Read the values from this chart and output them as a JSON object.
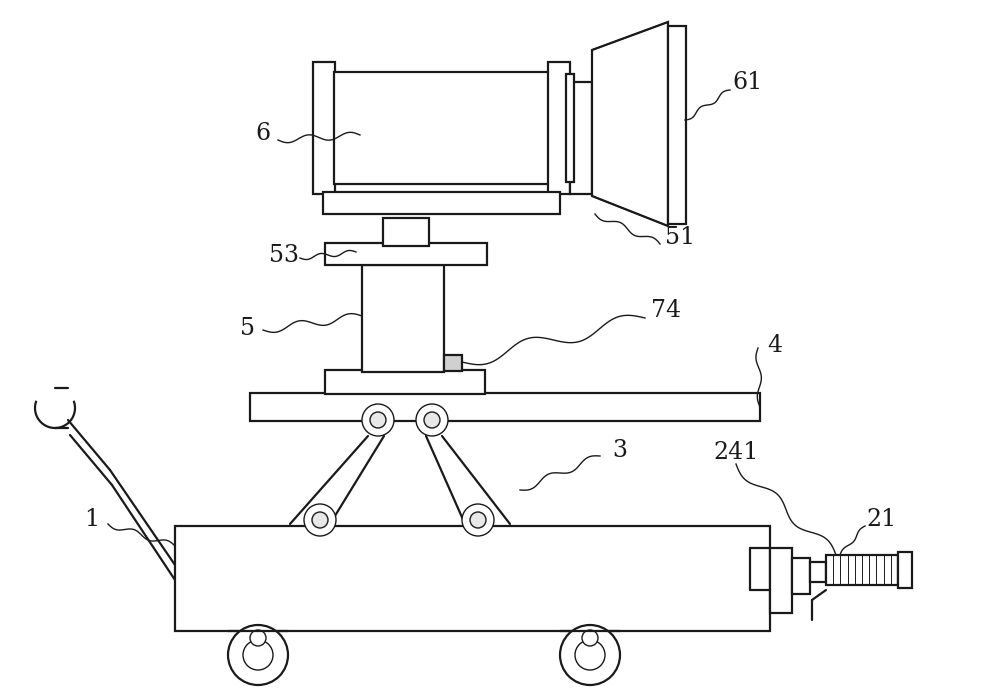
{
  "bg_color": "#ffffff",
  "line_color": "#1a1a1a",
  "lw": 1.6,
  "tlw": 1.0,
  "fig_w": 10.0,
  "fig_h": 6.91,
  "xlim": [
    0,
    1000
  ],
  "ylim": [
    0,
    691
  ]
}
